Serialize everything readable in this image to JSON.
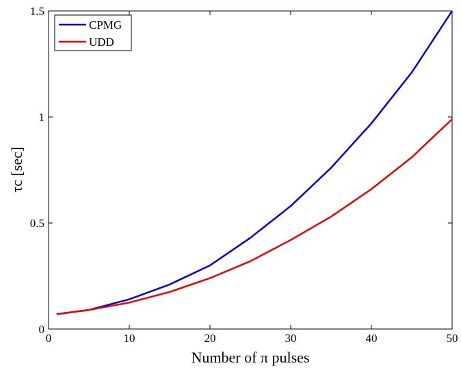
{
  "chart_data": {
    "type": "line",
    "title": "",
    "xlabel": "Number of π pulses",
    "ylabel": "τc [sec]",
    "xlim": [
      0,
      50
    ],
    "ylim": [
      0,
      1.5
    ],
    "xticks": [
      "0",
      "10",
      "20",
      "30",
      "40",
      "50"
    ],
    "yticks": [
      "0",
      "0.5",
      "1",
      "1.5"
    ],
    "grid": false,
    "legend": "top-left",
    "x": [
      1,
      5,
      10,
      15,
      20,
      25,
      30,
      35,
      40,
      45,
      50
    ],
    "series": [
      {
        "name": "CPMG",
        "color": "#0000dd",
        "values": [
          0.07,
          0.09,
          0.14,
          0.21,
          0.3,
          0.43,
          0.58,
          0.76,
          0.97,
          1.21,
          1.5
        ]
      },
      {
        "name": "UDD",
        "color": "#ee0000",
        "values": [
          0.07,
          0.09,
          0.125,
          0.175,
          0.24,
          0.32,
          0.42,
          0.53,
          0.66,
          0.81,
          0.99
        ]
      }
    ]
  }
}
